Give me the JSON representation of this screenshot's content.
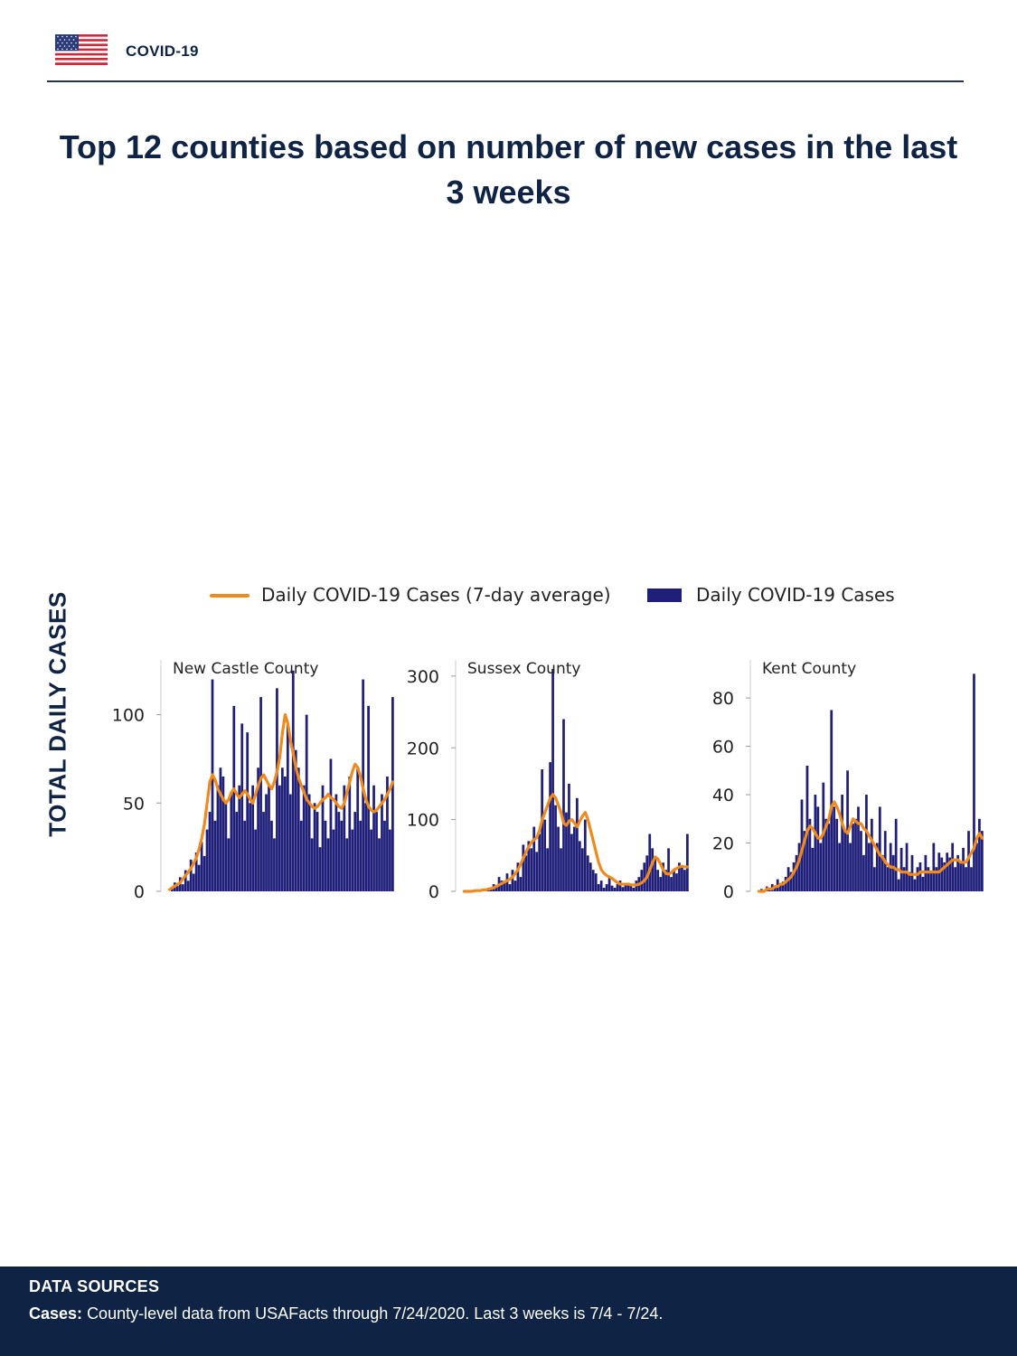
{
  "header": {
    "brand": "COVID-19",
    "flag_icon": "us-flag-icon"
  },
  "title": "Top 12 counties based on number of new cases in the last 3 weeks",
  "y_axis_label": "TOTAL DAILY CASES",
  "legend": {
    "line_label": "Daily COVID-19 Cases (7-day average)",
    "bar_label": "Daily COVID-19 Cases"
  },
  "colors": {
    "line": "#f08a1c",
    "bar": "#1f1f7a",
    "navy": "#0f2344"
  },
  "footer": {
    "title": "DATA SOURCES",
    "cases_label": "Cases:",
    "cases_text": "County-level data from USAFacts through 7/24/2020. Last 3 weeks is 7/4 - 7/24."
  },
  "chart_data": [
    {
      "type": "bar",
      "title": "New Castle County",
      "ylim": [
        0,
        130
      ],
      "yticks": [
        0,
        50,
        100
      ],
      "series": [
        {
          "name": "Daily COVID-19 Cases",
          "type": "bar",
          "values": [
            0,
            2,
            5,
            3,
            8,
            4,
            12,
            6,
            18,
            10,
            22,
            15,
            28,
            20,
            35,
            45,
            120,
            40,
            60,
            70,
            65,
            50,
            30,
            55,
            105,
            45,
            60,
            95,
            40,
            90,
            50,
            60,
            35,
            70,
            110,
            45,
            55,
            60,
            40,
            30,
            115,
            60,
            70,
            65,
            95,
            55,
            125,
            80,
            70,
            40,
            60,
            100,
            55,
            30,
            50,
            45,
            25,
            60,
            40,
            30,
            75,
            35,
            55,
            45,
            40,
            60,
            30,
            65,
            35,
            45,
            70,
            40,
            120,
            50,
            105,
            35,
            60,
            45,
            30,
            55,
            40,
            65,
            35,
            110
          ]
        },
        {
          "name": "Daily COVID-19 Cases (7-day average)",
          "type": "line",
          "values": [
            1,
            2,
            3,
            4,
            5,
            7,
            9,
            11,
            13,
            16,
            19,
            24,
            30,
            38,
            50,
            62,
            66,
            63,
            58,
            55,
            52,
            50,
            52,
            56,
            58,
            55,
            53,
            55,
            57,
            55,
            52,
            50,
            55,
            60,
            64,
            66,
            63,
            60,
            58,
            62,
            68,
            76,
            90,
            100,
            95,
            85,
            78,
            70,
            64,
            60,
            56,
            52,
            50,
            48,
            47,
            48,
            50,
            52,
            53,
            55,
            53,
            52,
            50,
            48,
            47,
            50,
            56,
            62,
            68,
            72,
            70,
            65,
            58,
            52,
            48,
            46,
            45,
            46,
            48,
            50,
            52,
            55,
            58,
            62
          ]
        }
      ]
    },
    {
      "type": "bar",
      "title": "Sussex County",
      "ylim": [
        0,
        320
      ],
      "yticks": [
        0,
        100,
        200,
        300
      ],
      "series": [
        {
          "name": "Daily COVID-19 Cases",
          "type": "bar",
          "values": [
            0,
            0,
            0,
            1,
            0,
            2,
            1,
            3,
            2,
            5,
            4,
            10,
            8,
            20,
            15,
            12,
            25,
            10,
            30,
            15,
            40,
            20,
            65,
            50,
            70,
            60,
            90,
            55,
            80,
            170,
            100,
            60,
            180,
            310,
            120,
            90,
            60,
            240,
            110,
            150,
            80,
            90,
            130,
            70,
            60,
            100,
            50,
            40,
            30,
            25,
            10,
            15,
            5,
            10,
            20,
            8,
            5,
            10,
            15,
            6,
            10,
            12,
            8,
            5,
            15,
            20,
            30,
            40,
            50,
            80,
            60,
            45,
            30,
            20,
            40,
            30,
            60,
            20,
            30,
            25,
            40,
            35,
            30,
            80
          ]
        },
        {
          "name": "Daily COVID-19 Cases (7-day average)",
          "type": "line",
          "values": [
            0,
            0,
            0,
            0,
            1,
            1,
            1,
            2,
            2,
            3,
            4,
            5,
            7,
            9,
            11,
            13,
            15,
            17,
            20,
            25,
            30,
            38,
            46,
            55,
            62,
            68,
            72,
            75,
            85,
            100,
            110,
            120,
            130,
            135,
            130,
            120,
            110,
            95,
            92,
            98,
            100,
            95,
            90,
            98,
            105,
            110,
            100,
            85,
            70,
            55,
            40,
            30,
            25,
            22,
            20,
            18,
            15,
            12,
            10,
            10,
            10,
            10,
            9,
            9,
            9,
            10,
            12,
            15,
            20,
            30,
            40,
            48,
            45,
            38,
            30,
            25,
            24,
            26,
            30,
            32,
            34,
            35,
            34,
            34
          ]
        }
      ]
    },
    {
      "type": "bar",
      "title": "Kent County",
      "ylim": [
        0,
        95
      ],
      "yticks": [
        0,
        20,
        40,
        60,
        80
      ],
      "series": [
        {
          "name": "Daily COVID-19 Cases",
          "type": "bar",
          "values": [
            0,
            1,
            0,
            2,
            1,
            3,
            2,
            5,
            3,
            4,
            6,
            10,
            8,
            12,
            15,
            20,
            38,
            25,
            52,
            30,
            18,
            40,
            35,
            20,
            45,
            30,
            28,
            75,
            35,
            30,
            20,
            40,
            25,
            50,
            20,
            28,
            30,
            35,
            25,
            15,
            40,
            20,
            30,
            10,
            20,
            35,
            15,
            25,
            10,
            20,
            15,
            30,
            5,
            18,
            10,
            20,
            8,
            15,
            5,
            10,
            12,
            6,
            15,
            10,
            8,
            20,
            10,
            16,
            14,
            12,
            16,
            14,
            20,
            10,
            15,
            12,
            18,
            10,
            25,
            10,
            90,
            20,
            30,
            25
          ]
        },
        {
          "name": "Daily COVID-19 Cases (7-day average)",
          "type": "line",
          "values": [
            0,
            0,
            0,
            1,
            1,
            1,
            2,
            2,
            3,
            3,
            4,
            5,
            6,
            8,
            10,
            13,
            17,
            21,
            25,
            27,
            26,
            24,
            22,
            22,
            24,
            27,
            30,
            35,
            37,
            35,
            32,
            28,
            25,
            24,
            27,
            30,
            29,
            28,
            28,
            26,
            25,
            23,
            21,
            19,
            17,
            15,
            14,
            12,
            11,
            10,
            10,
            9,
            9,
            8,
            8,
            8,
            7,
            7,
            7,
            7,
            8,
            8,
            8,
            8,
            8,
            8,
            8,
            8,
            9,
            10,
            11,
            12,
            13,
            13,
            13,
            12,
            12,
            12,
            14,
            16,
            18,
            22,
            24,
            22
          ]
        }
      ]
    }
  ]
}
